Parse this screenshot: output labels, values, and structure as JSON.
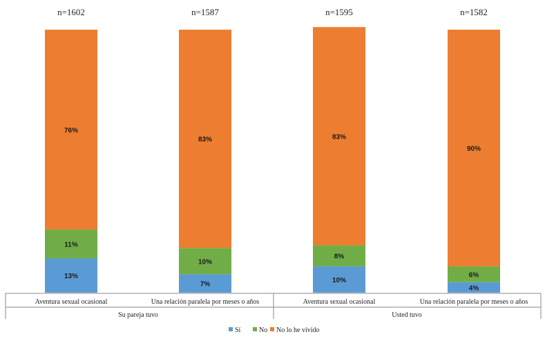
{
  "chart_data": {
    "type": "bar",
    "stacked": true,
    "categories": [
      "Aventura sexual ocasional",
      "Una relación paralela por meses o años",
      "Aventura sexual ocasional",
      "Una relación paralela por meses o años"
    ],
    "groups": [
      {
        "label": "Su pareja tuvo",
        "categories": [
          0,
          1
        ]
      },
      {
        "label": "Usted tuvo",
        "categories": [
          2,
          3
        ]
      }
    ],
    "n_labels": [
      "n=1602",
      "n=1587",
      "n=1595",
      "n=1582"
    ],
    "series": [
      {
        "name": "Sí",
        "color": "#5b9bd5",
        "values": [
          13,
          7,
          10,
          4
        ],
        "labels": [
          "13%",
          "7%",
          "10%",
          "4%"
        ]
      },
      {
        "name": "No",
        "color": "#70ad47",
        "values": [
          11,
          10,
          8,
          6
        ],
        "labels": [
          "11%",
          "10%",
          "8%",
          "6%"
        ]
      },
      {
        "name": "No lo he vivido",
        "color": "#ed7d31",
        "values": [
          76,
          83,
          83,
          90
        ],
        "labels": [
          "76%",
          "83%",
          "83%",
          "90%"
        ]
      }
    ],
    "ylim": [
      0,
      100
    ],
    "grid": false,
    "legend_position": "bottom"
  }
}
